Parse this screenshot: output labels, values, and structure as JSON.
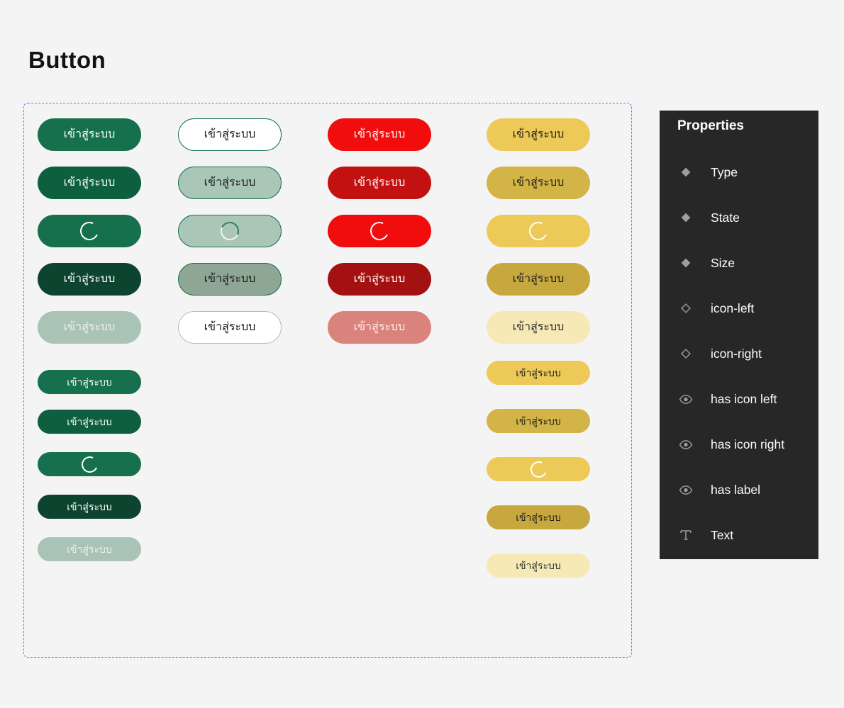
{
  "page": {
    "title": "Button",
    "background": "#f5f4f5"
  },
  "frame": {
    "border_color": "#a35bf5"
  },
  "button_label": "เข้าสู่ระบบ",
  "button_groups": [
    {
      "name": "primary-green",
      "column": 0,
      "variants": [
        {
          "state": "default",
          "size": "large",
          "content": "label",
          "bg": "#16704d",
          "text": "#ffffff"
        },
        {
          "state": "hover",
          "size": "large",
          "content": "label",
          "bg": "#0d5f40",
          "text": "#ffffff"
        },
        {
          "state": "loading",
          "size": "large",
          "content": "spinner",
          "bg": "#16704d",
          "spinner": "#ffffff"
        },
        {
          "state": "pressed",
          "size": "large",
          "content": "label",
          "bg": "#0d4430",
          "text": "#ffffff"
        },
        {
          "state": "disabled",
          "size": "large",
          "content": "label",
          "bg": "#a9c4b6",
          "text": "#e9f1ec"
        },
        {
          "state": "default",
          "size": "small",
          "content": "label",
          "bg": "#16704d",
          "text": "#ffffff"
        },
        {
          "state": "hover",
          "size": "small",
          "content": "label",
          "bg": "#0d5f40",
          "text": "#ffffff"
        },
        {
          "state": "loading",
          "size": "small",
          "content": "spinner",
          "bg": "#16704d",
          "spinner": "#ffffff"
        },
        {
          "state": "pressed",
          "size": "small",
          "content": "label",
          "bg": "#0d4430",
          "text": "#ffffff"
        },
        {
          "state": "disabled",
          "size": "small",
          "content": "label",
          "bg": "#a9c4b6",
          "text": "#e9f1ec"
        }
      ]
    },
    {
      "name": "secondary-outline",
      "column": 1,
      "variants": [
        {
          "state": "default",
          "size": "large",
          "content": "label",
          "bg": "#ffffff",
          "text": "#1c1c1c",
          "border": "#16704d"
        },
        {
          "state": "hover",
          "size": "large",
          "content": "label",
          "bg": "#a9c6b7",
          "text": "#1c1c1c",
          "border": "#16704d"
        },
        {
          "state": "loading",
          "size": "large",
          "content": "spinner",
          "bg": "#a9c6b7",
          "border": "#16704d",
          "spinner": "duo"
        },
        {
          "state": "pressed",
          "size": "large",
          "content": "label",
          "bg": "#8ea795",
          "text": "#1c1c1c",
          "border": "#16704d"
        },
        {
          "state": "disabled",
          "size": "large",
          "content": "label",
          "bg": "#ffffff",
          "text": "#1c1c1c",
          "border": "#a9c4b6"
        }
      ]
    },
    {
      "name": "danger-red",
      "column": 2,
      "variants": [
        {
          "state": "default",
          "size": "large",
          "content": "label",
          "bg": "#f10d0d",
          "text": "#ffffff"
        },
        {
          "state": "hover",
          "size": "large",
          "content": "label",
          "bg": "#c31111",
          "text": "#ffffff"
        },
        {
          "state": "loading",
          "size": "large",
          "content": "spinner",
          "bg": "#f10d0d",
          "spinner": "#ffffff"
        },
        {
          "state": "pressed",
          "size": "large",
          "content": "label",
          "bg": "#a31111",
          "text": "#ffffff"
        },
        {
          "state": "disabled",
          "size": "large",
          "content": "label",
          "bg": "#da837c",
          "text": "#ffece8"
        }
      ]
    },
    {
      "name": "warning-yellow",
      "column": 3,
      "variants": [
        {
          "state": "default",
          "size": "large",
          "content": "label",
          "bg": "#edca58",
          "text": "#1e1e1e"
        },
        {
          "state": "hover",
          "size": "large",
          "content": "label",
          "bg": "#d3b447",
          "text": "#1e1e1e"
        },
        {
          "state": "loading",
          "size": "large",
          "content": "spinner",
          "bg": "#edca58",
          "spinner": "#ffffff"
        },
        {
          "state": "pressed",
          "size": "large",
          "content": "label",
          "bg": "#c7a83e",
          "text": "#1e1e1e"
        },
        {
          "state": "disabled",
          "size": "large",
          "content": "label",
          "bg": "#f6e9b6",
          "text": "#2e2e2e"
        },
        {
          "state": "default",
          "size": "small",
          "content": "label",
          "bg": "#edca58",
          "text": "#1e1e1e"
        },
        {
          "state": "hover",
          "size": "small",
          "content": "label",
          "bg": "#d3b447",
          "text": "#1e1e1e"
        },
        {
          "state": "loading",
          "size": "small",
          "content": "spinner",
          "bg": "#edca58",
          "spinner": "#ffffff"
        },
        {
          "state": "pressed",
          "size": "small",
          "content": "label",
          "bg": "#c7a83e",
          "text": "#1e1e1e"
        },
        {
          "state": "disabled",
          "size": "small",
          "content": "label",
          "bg": "#f6e9b6",
          "text": "#2e2e2e"
        }
      ]
    }
  ],
  "properties_panel": {
    "title": "Properties",
    "bg": "#272727",
    "icon_color": "#9e9e9e",
    "items": [
      {
        "icon": "diamond-filled-icon",
        "label": "Type"
      },
      {
        "icon": "diamond-filled-icon",
        "label": "State"
      },
      {
        "icon": "diamond-filled-icon",
        "label": "Size"
      },
      {
        "icon": "diamond-outline-icon",
        "label": "icon-left"
      },
      {
        "icon": "diamond-outline-icon",
        "label": "icon-right"
      },
      {
        "icon": "eye-icon",
        "label": "has icon left"
      },
      {
        "icon": "eye-icon",
        "label": "has icon right"
      },
      {
        "icon": "eye-icon",
        "label": "has label"
      },
      {
        "icon": "text-icon",
        "label": "Text"
      }
    ]
  }
}
